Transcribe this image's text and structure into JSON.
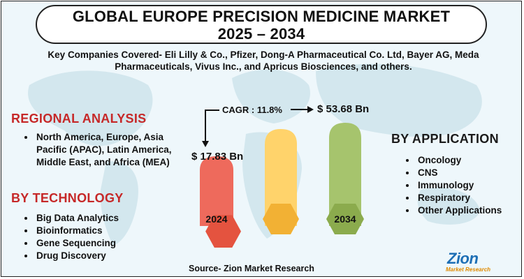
{
  "title": {
    "line1": "GLOBAL EUROPE PRECISION MEDICINE MARKET",
    "line2": "2025 – 2034"
  },
  "key_companies": "Key Companies Covered- Eli Lilly & Co., Pfizer, Dong-A Pharmaceutical Co. Ltd, Bayer AG, Meda Pharmaceuticals, Vivus Inc., and Apricus Biosciences, and others.",
  "regional": {
    "heading": "REGIONAL ANALYSIS",
    "items": [
      "North America, Europe, Asia Pacific (APAC), Latin America, Middle East, and Africa (MEA)"
    ]
  },
  "technology": {
    "heading": "BY TECHNOLOGY",
    "items": [
      "Big Data Analytics",
      "Bioinformatics",
      "Gene Sequencing",
      "Drug Discovery"
    ]
  },
  "application": {
    "heading": "BY APPLICATION",
    "items": [
      "Oncology",
      "CNS",
      "Immunology",
      "Respiratory",
      "Other Applications"
    ]
  },
  "market": {
    "cagr": "CAGR : 11.8%",
    "start_value": "$ 17.83 Bn",
    "end_value": "$ 53.68 Bn",
    "start_year": "2024",
    "end_year": "2034"
  },
  "colors": {
    "bar_2024": "#ee6a5c",
    "hex_2024": "#e4533f",
    "bar_mid": "#ffd36b",
    "hex_mid": "#f2b134",
    "bar_2034": "#a6c46d",
    "hex_2034": "#8bab4d",
    "heading_red": "#c62828"
  },
  "source": "Source- Zion Market Research",
  "logo": {
    "word": "Zion",
    "sub": "Market Research"
  }
}
